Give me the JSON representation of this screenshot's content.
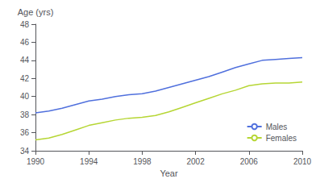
{
  "chart_data": {
    "type": "line",
    "xlabel": "Year",
    "ylabel": "Age (yrs)",
    "x": [
      1990,
      1991,
      1992,
      1993,
      1994,
      1995,
      1996,
      1997,
      1998,
      1999,
      2000,
      2001,
      2002,
      2003,
      2004,
      2005,
      2006,
      2007,
      2008,
      2009,
      2010
    ],
    "series": [
      {
        "name": "Males",
        "values": [
          38.2,
          38.4,
          38.7,
          39.1,
          39.5,
          39.7,
          40.0,
          40.2,
          40.3,
          40.6,
          41.0,
          41.4,
          41.8,
          42.2,
          42.7,
          43.2,
          43.6,
          44.0,
          44.1,
          44.2,
          44.3
        ]
      },
      {
        "name": "Females",
        "values": [
          35.2,
          35.4,
          35.8,
          36.3,
          36.8,
          37.1,
          37.4,
          37.6,
          37.7,
          37.9,
          38.3,
          38.8,
          39.3,
          39.8,
          40.3,
          40.7,
          41.2,
          41.4,
          41.5,
          41.5,
          41.6
        ]
      }
    ],
    "xlim": [
      1990,
      2010
    ],
    "xticks": [
      1990,
      1994,
      1998,
      2002,
      2006,
      2010
    ],
    "ylim": [
      34,
      48
    ],
    "yticks": [
      34,
      36,
      38,
      40,
      42,
      44,
      46,
      48
    ],
    "grid": false,
    "legend": "lower right"
  }
}
